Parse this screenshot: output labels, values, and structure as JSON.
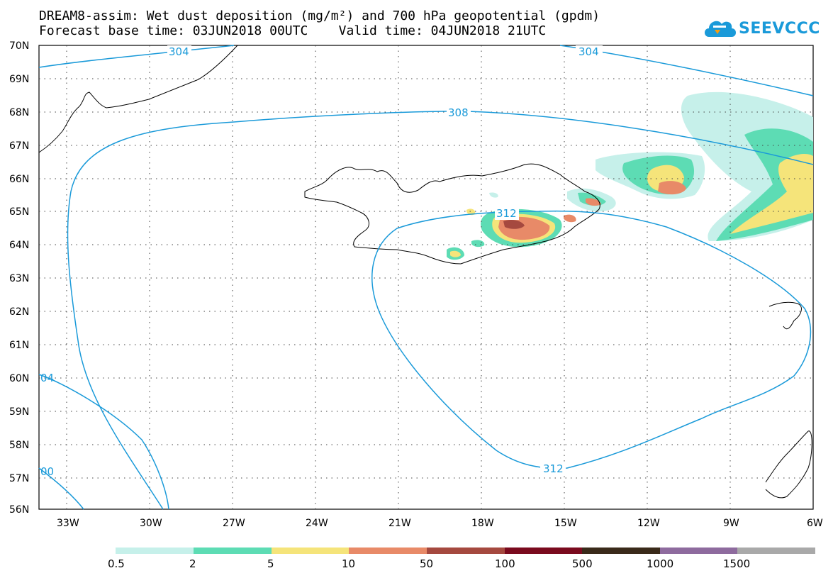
{
  "title": {
    "line1": "DREAM8-assim: Wet dust deposition (mg/m²) and 700 hPa geopotential (gpdm)",
    "line2": "Forecast base time: 03JUN2018 00UTC    Valid time: 04JUN2018 21UTC"
  },
  "logo": {
    "text": "SEEVCCC",
    "icon": "cloud-icon"
  },
  "map": {
    "lat_labels": [
      "70N",
      "69N",
      "68N",
      "67N",
      "66N",
      "65N",
      "64N",
      "63N",
      "62N",
      "61N",
      "60N",
      "59N",
      "58N",
      "57N",
      "56N"
    ],
    "lon_labels": [
      "33W",
      "30W",
      "27W",
      "24W",
      "21W",
      "18W",
      "15W",
      "12W",
      "9W",
      "6W"
    ],
    "contour_labels": [
      "304",
      "304",
      "308",
      "312",
      "312",
      "04",
      "00"
    ],
    "contour_color": "#1a9ad9",
    "grid": "dotted"
  },
  "colorbar": {
    "labels": [
      "0.5",
      "2",
      "5",
      "10",
      "50",
      "100",
      "500",
      "1000",
      "1500"
    ],
    "colors": [
      "#c6f0ea",
      "#5ddcb4",
      "#f5e47a",
      "#e88a68",
      "#a5493f",
      "#7a0a1e",
      "#3a2a1a",
      "#8e6b9e",
      "#a9a9a9"
    ]
  }
}
